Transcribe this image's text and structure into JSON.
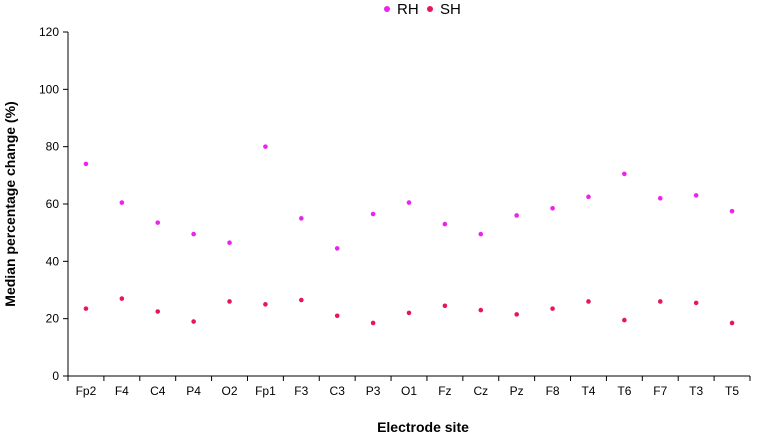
{
  "chart_data": {
    "type": "scatter",
    "title": "",
    "xlabel": "Electrode site",
    "ylabel": "Median percentage change (%)",
    "categories": [
      "Fp2",
      "F4",
      "C4",
      "P4",
      "O2",
      "Fp1",
      "F3",
      "C3",
      "P3",
      "O1",
      "Fz",
      "Cz",
      "Pz",
      "F8",
      "T4",
      "T6",
      "F7",
      "T3",
      "T5"
    ],
    "ylim": [
      0,
      120
    ],
    "yticks": [
      0,
      20,
      40,
      60,
      80,
      100,
      120
    ],
    "grid": false,
    "legend_position": "top-center",
    "series": [
      {
        "name": "RH",
        "color": "#ee22ee",
        "values": [
          74,
          60.5,
          53.5,
          49.5,
          46.5,
          80,
          55,
          44.5,
          56.5,
          60.5,
          53,
          49.5,
          56,
          58.5,
          62.5,
          70.5,
          62,
          63,
          57.5
        ]
      },
      {
        "name": "SH",
        "color": "#e8155e",
        "values": [
          23.5,
          27,
          22.5,
          19,
          26,
          25,
          26.5,
          21,
          18.5,
          22,
          24.5,
          23,
          21.5,
          23.5,
          26,
          19.5,
          26,
          25.5,
          18.5
        ]
      }
    ]
  }
}
